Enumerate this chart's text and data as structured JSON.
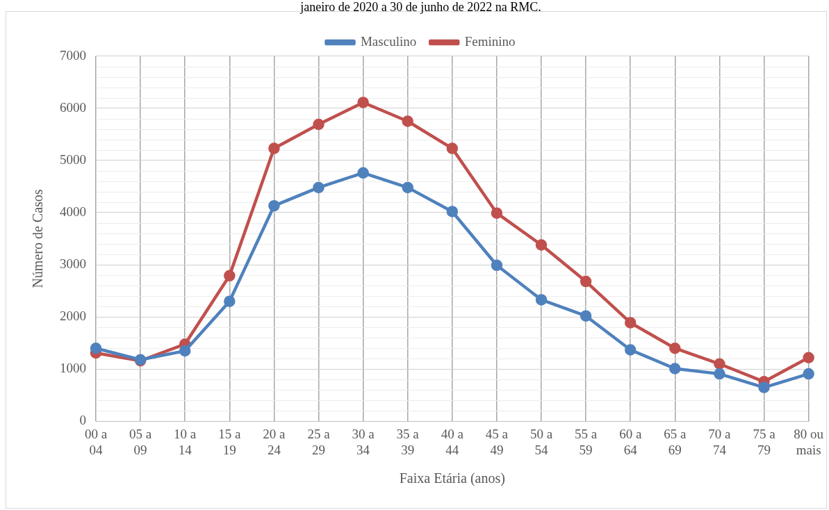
{
  "chart_data": {
    "type": "line",
    "title": "janeiro de 2020 a 30 de junho de 2022 na RMC.",
    "xlabel": "Faixa Etária (anos)",
    "ylabel": "Número de Casos",
    "categories": [
      "00 a 04",
      "05 a 09",
      "10 a 14",
      "15 a 19",
      "20 a 24",
      "25 a 29",
      "30 a 34",
      "35 a 39",
      "40 a 44",
      "45 a 49",
      "50 a 54",
      "55 a 59",
      "60 a 64",
      "65 a 69",
      "70 a 74",
      "75 a 79",
      "80 ou mais"
    ],
    "series": [
      {
        "name": "Masculino",
        "color": "#4f81bd",
        "values": [
          1400,
          1180,
          1350,
          2300,
          4130,
          4480,
          4760,
          4480,
          4020,
          2990,
          2330,
          2020,
          1370,
          1010,
          910,
          650,
          910
        ]
      },
      {
        "name": "Feminino",
        "color": "#c0504d",
        "values": [
          1310,
          1160,
          1480,
          2790,
          5230,
          5690,
          6110,
          5750,
          5230,
          3990,
          3380,
          2680,
          1890,
          1400,
          1100,
          760,
          1220
        ]
      }
    ],
    "ylim": [
      0,
      7000
    ],
    "yticks": [
      0,
      1000,
      2000,
      3000,
      4000,
      5000,
      6000,
      7000
    ],
    "grid": true,
    "legend": "top",
    "marker": "circle",
    "line_style": "solid"
  }
}
